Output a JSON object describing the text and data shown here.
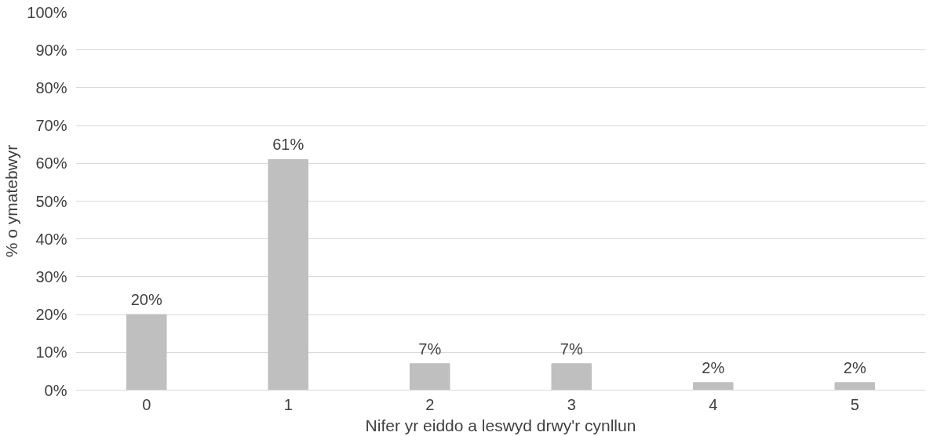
{
  "chart_data": {
    "type": "bar",
    "xlabel": "Nifer yr eiddo a leswyd drwy'r cynllun",
    "ylabel": "% o ymatebwyr",
    "categories": [
      "0",
      "1",
      "2",
      "3",
      "4",
      "5"
    ],
    "values": [
      20,
      61,
      7,
      7,
      2,
      2
    ],
    "value_labels": [
      "20%",
      "61%",
      "7%",
      "7%",
      "2%",
      "2%"
    ],
    "color": "#bfbfbf",
    "ylim": [
      0,
      100
    ],
    "yticks": [
      {
        "value": 0,
        "label": "0%"
      },
      {
        "value": 10,
        "label": "10%"
      },
      {
        "value": 20,
        "label": "20%"
      },
      {
        "value": 30,
        "label": "30%"
      },
      {
        "value": 40,
        "label": "40%"
      },
      {
        "value": 50,
        "label": "50%"
      },
      {
        "value": 60,
        "label": "60%"
      },
      {
        "value": 70,
        "label": "70%"
      },
      {
        "value": 80,
        "label": "80%"
      },
      {
        "value": 90,
        "label": "90%"
      },
      {
        "value": 100,
        "label": "100%"
      }
    ],
    "grid": "y"
  }
}
